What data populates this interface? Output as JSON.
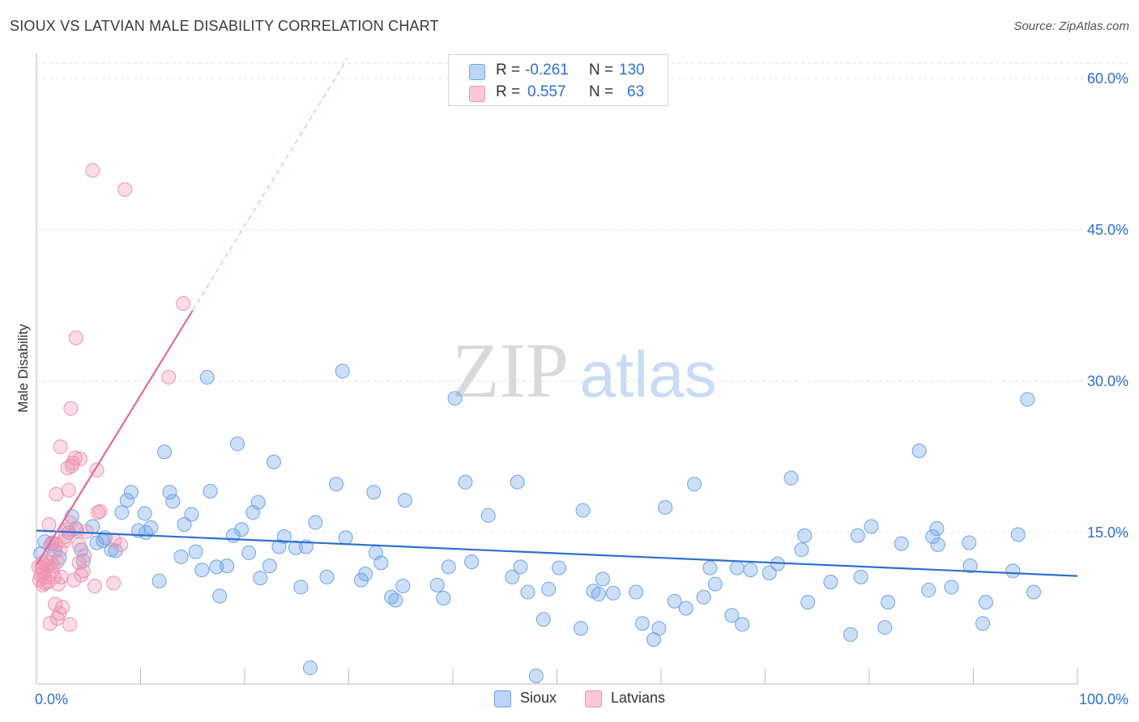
{
  "title": "SIOUX VS LATVIAN MALE DISABILITY CORRELATION CHART",
  "source": "Source: ZipAtlas.com",
  "watermark": {
    "zip": "ZIP",
    "atlas": "atlas"
  },
  "legend": {
    "rows": [
      {
        "r_label": "R =",
        "r_value": "-0.261",
        "n_label": "N =",
        "n_value": "130",
        "color": "#6fa4e8"
      },
      {
        "r_label": "R =",
        "r_value": "0.557",
        "n_label": "N =",
        "n_value": "63",
        "color": "#ef93b0"
      }
    ]
  },
  "bottom_legend": [
    {
      "label": "Sioux",
      "color": "#6fa4e8"
    },
    {
      "label": "Latvians",
      "color": "#ef93b0"
    }
  ],
  "chart_data": {
    "type": "scatter",
    "title": "SIOUX VS LATVIAN MALE DISABILITY CORRELATION CHART",
    "xlabel": "",
    "ylabel": "Male Disability",
    "xlim": [
      0,
      100
    ],
    "ylim": [
      0,
      63
    ],
    "x_tick_labels": [
      "0.0%",
      "100.0%"
    ],
    "y_ticks": [
      15,
      30,
      45,
      60
    ],
    "y_tick_labels": [
      "15.0%",
      "30.0%",
      "45.0%",
      "60.0%"
    ],
    "grid": true,
    "legend_position": "top-center",
    "series": [
      {
        "name": "Sioux",
        "color": "#6fa4e8",
        "line_color": "#2f6fd1",
        "trend": {
          "x": [
            0,
            100
          ],
          "y": [
            15.2,
            10.7
          ]
        },
        "points": [
          [
            0.8,
            14.1
          ],
          [
            1.5,
            13.9
          ],
          [
            1.8,
            13.2
          ],
          [
            2.2,
            12.5
          ],
          [
            3.1,
            15.0
          ],
          [
            3.4,
            16.6
          ],
          [
            3.8,
            15.4
          ],
          [
            4.3,
            13.3
          ],
          [
            4.5,
            12.2
          ],
          [
            5.4,
            15.6
          ],
          [
            5.8,
            14.0
          ],
          [
            6.4,
            14.2
          ],
          [
            6.6,
            14.5
          ],
          [
            7.2,
            13.3
          ],
          [
            7.6,
            13.2
          ],
          [
            8.2,
            17.0
          ],
          [
            8.7,
            18.2
          ],
          [
            9.1,
            19.0
          ],
          [
            9.8,
            15.2
          ],
          [
            10.4,
            16.9
          ],
          [
            10.5,
            15.0
          ],
          [
            11.0,
            15.5
          ],
          [
            11.8,
            10.2
          ],
          [
            12.3,
            23.0
          ],
          [
            12.8,
            19.0
          ],
          [
            13.1,
            18.1
          ],
          [
            13.9,
            12.6
          ],
          [
            14.2,
            15.8
          ],
          [
            14.9,
            16.8
          ],
          [
            15.3,
            13.1
          ],
          [
            15.9,
            11.3
          ],
          [
            16.4,
            30.4
          ],
          [
            16.7,
            19.1
          ],
          [
            17.3,
            11.6
          ],
          [
            17.6,
            8.7
          ],
          [
            18.3,
            11.7
          ],
          [
            18.9,
            14.7
          ],
          [
            19.3,
            23.8
          ],
          [
            19.7,
            15.3
          ],
          [
            20.4,
            13.0
          ],
          [
            20.8,
            17.0
          ],
          [
            21.3,
            18.0
          ],
          [
            21.5,
            10.5
          ],
          [
            22.4,
            11.7
          ],
          [
            22.8,
            22.0
          ],
          [
            23.3,
            13.6
          ],
          [
            23.8,
            14.6
          ],
          [
            24.9,
            13.5
          ],
          [
            25.4,
            9.6
          ],
          [
            25.9,
            13.6
          ],
          [
            26.3,
            1.6
          ],
          [
            26.8,
            16.0
          ],
          [
            27.9,
            10.6
          ],
          [
            28.8,
            19.8
          ],
          [
            29.4,
            31.0
          ],
          [
            29.7,
            14.5
          ],
          [
            31.2,
            10.3
          ],
          [
            31.6,
            10.9
          ],
          [
            32.4,
            19.0
          ],
          [
            32.6,
            13.0
          ],
          [
            33.1,
            12.0
          ],
          [
            34.1,
            8.6
          ],
          [
            34.5,
            8.3
          ],
          [
            35.2,
            9.7
          ],
          [
            35.4,
            18.2
          ],
          [
            38.5,
            9.8
          ],
          [
            39.1,
            8.5
          ],
          [
            39.6,
            11.6
          ],
          [
            40.2,
            28.3
          ],
          [
            41.2,
            20.0
          ],
          [
            41.8,
            12.1
          ],
          [
            43.4,
            16.7
          ],
          [
            45.7,
            10.6
          ],
          [
            46.2,
            20.0
          ],
          [
            46.5,
            11.6
          ],
          [
            47.2,
            9.1
          ],
          [
            48.0,
            0.8
          ],
          [
            48.7,
            6.4
          ],
          [
            49.2,
            9.4
          ],
          [
            50.2,
            11.5
          ],
          [
            52.3,
            5.5
          ],
          [
            52.5,
            17.2
          ],
          [
            53.5,
            9.2
          ],
          [
            54.0,
            8.9
          ],
          [
            54.4,
            10.4
          ],
          [
            55.4,
            9.0
          ],
          [
            57.6,
            9.1
          ],
          [
            58.2,
            6.0
          ],
          [
            59.3,
            4.4
          ],
          [
            59.8,
            5.5
          ],
          [
            60.4,
            17.5
          ],
          [
            61.3,
            8.2
          ],
          [
            62.4,
            7.5
          ],
          [
            63.2,
            19.8
          ],
          [
            64.1,
            8.6
          ],
          [
            64.7,
            11.5
          ],
          [
            65.2,
            9.9
          ],
          [
            66.8,
            6.8
          ],
          [
            67.3,
            11.5
          ],
          [
            67.8,
            5.9
          ],
          [
            68.6,
            11.3
          ],
          [
            70.4,
            11.0
          ],
          [
            71.2,
            11.9
          ],
          [
            72.5,
            20.4
          ],
          [
            73.5,
            13.3
          ],
          [
            73.8,
            14.7
          ],
          [
            74.1,
            8.1
          ],
          [
            76.3,
            10.1
          ],
          [
            78.2,
            4.9
          ],
          [
            78.9,
            14.7
          ],
          [
            79.2,
            10.6
          ],
          [
            80.2,
            15.6
          ],
          [
            81.5,
            5.6
          ],
          [
            81.8,
            8.1
          ],
          [
            83.1,
            13.9
          ],
          [
            84.8,
            23.1
          ],
          [
            85.7,
            9.3
          ],
          [
            86.1,
            14.6
          ],
          [
            86.5,
            15.4
          ],
          [
            86.6,
            13.8
          ],
          [
            87.9,
            9.6
          ],
          [
            89.6,
            14.0
          ],
          [
            89.7,
            11.7
          ],
          [
            90.9,
            6.0
          ],
          [
            91.2,
            8.1
          ],
          [
            93.8,
            11.2
          ],
          [
            94.3,
            14.8
          ],
          [
            95.2,
            28.2
          ],
          [
            95.8,
            9.1
          ],
          [
            0.4,
            12.9
          ]
        ]
      },
      {
        "name": "Latvians",
        "color": "#ef93b0",
        "line_color": "#e36b96",
        "trend": {
          "x": [
            0,
            15.0
          ],
          "y": [
            11.8,
            37.0
          ]
        },
        "points": [
          [
            0.2,
            11.6
          ],
          [
            0.3,
            10.3
          ],
          [
            0.4,
            10.8
          ],
          [
            0.5,
            11.5
          ],
          [
            0.6,
            12.0
          ],
          [
            0.6,
            9.8
          ],
          [
            0.7,
            11.1
          ],
          [
            0.8,
            10.0
          ],
          [
            0.8,
            10.6
          ],
          [
            0.9,
            12.2
          ],
          [
            1.0,
            11.7
          ],
          [
            1.1,
            10.1
          ],
          [
            1.2,
            15.8
          ],
          [
            1.3,
            13.7
          ],
          [
            1.3,
            6.0
          ],
          [
            1.4,
            12.0
          ],
          [
            1.5,
            14.0
          ],
          [
            1.5,
            11.2
          ],
          [
            1.6,
            11.7
          ],
          [
            1.7,
            10.6
          ],
          [
            1.8,
            7.9
          ],
          [
            1.9,
            13.9
          ],
          [
            1.9,
            18.8
          ],
          [
            2.0,
            12.1
          ],
          [
            2.0,
            6.5
          ],
          [
            2.1,
            9.9
          ],
          [
            2.2,
            7.0
          ],
          [
            2.3,
            13.3
          ],
          [
            2.3,
            23.5
          ],
          [
            2.4,
            10.6
          ],
          [
            2.5,
            7.6
          ],
          [
            2.7,
            14.2
          ],
          [
            2.8,
            14.6
          ],
          [
            3.0,
            21.4
          ],
          [
            3.0,
            15.3
          ],
          [
            3.1,
            19.2
          ],
          [
            3.2,
            16.0
          ],
          [
            3.2,
            5.9
          ],
          [
            3.3,
            27.3
          ],
          [
            3.4,
            21.6
          ],
          [
            3.5,
            21.9
          ],
          [
            3.6,
            10.3
          ],
          [
            3.7,
            22.4
          ],
          [
            3.8,
            34.3
          ],
          [
            3.9,
            15.2
          ],
          [
            4.1,
            13.8
          ],
          [
            4.1,
            12.0
          ],
          [
            4.2,
            22.3
          ],
          [
            4.3,
            10.8
          ],
          [
            4.5,
            11.2
          ],
          [
            4.6,
            12.7
          ],
          [
            4.8,
            15.1
          ],
          [
            5.4,
            50.9
          ],
          [
            5.6,
            9.7
          ],
          [
            5.8,
            21.2
          ],
          [
            5.9,
            17.0
          ],
          [
            6.1,
            17.1
          ],
          [
            7.4,
            10.0
          ],
          [
            7.5,
            14.2
          ],
          [
            8.1,
            13.8
          ],
          [
            8.5,
            49.0
          ],
          [
            12.7,
            30.4
          ],
          [
            14.1,
            37.7
          ]
        ]
      }
    ]
  }
}
